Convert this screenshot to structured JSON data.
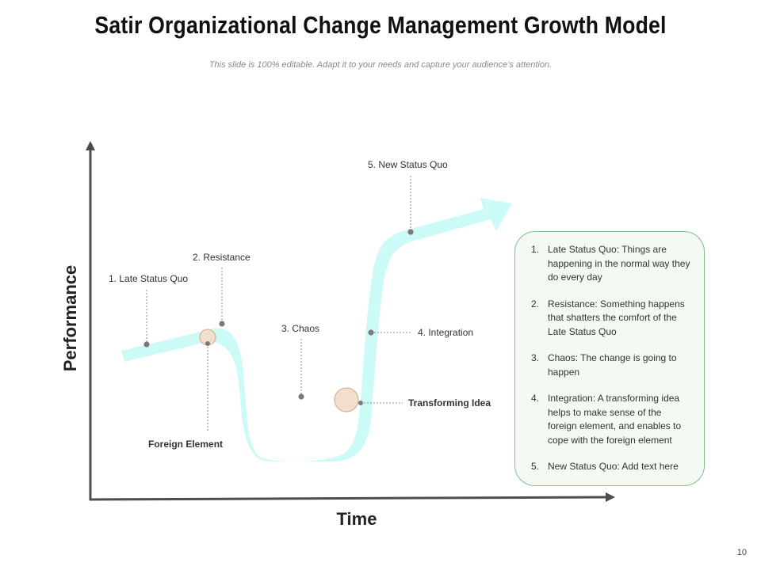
{
  "slide": {
    "title": "Satir Organizational Change Management Growth Model",
    "subtitle": "This slide is 100% editable. Adapt it to your needs and capture your audience’s attention.",
    "page_number": "10"
  },
  "axes": {
    "y_label": "Performance",
    "x_label": "Time"
  },
  "stages": [
    {
      "label": "1. Late Status Quo"
    },
    {
      "label": "2. Resistance"
    },
    {
      "label": "3. Chaos"
    },
    {
      "label": "4. Integration"
    },
    {
      "label": "5. New Status Quo"
    }
  ],
  "markers": {
    "foreign_element": "Foreign Element",
    "transforming_idea": "Transforming Idea"
  },
  "legend": [
    {
      "num": "1.",
      "text": "Late Status Quo: Things are happening in the normal way they do every day"
    },
    {
      "num": "2.",
      "text": "Resistance: Something happens that shatters the comfort of the Late Status Quo"
    },
    {
      "num": "3.",
      "text": "Chaos: The change is going to happen"
    },
    {
      "num": "4.",
      "text": "Integration: A transforming idea helps to make sense of the foreign element, and enables to cope with the foreign element"
    },
    {
      "num": "5.",
      "text": "New Status Quo: Add text here"
    }
  ],
  "colors": {
    "curve": "#ccfbf7",
    "axis": "#4d4d4d",
    "marker_fill": "#f3decb",
    "marker_stroke": "#c9a98c",
    "legend_border": "#7fbf8f",
    "legend_bg": "#f3faf4"
  }
}
